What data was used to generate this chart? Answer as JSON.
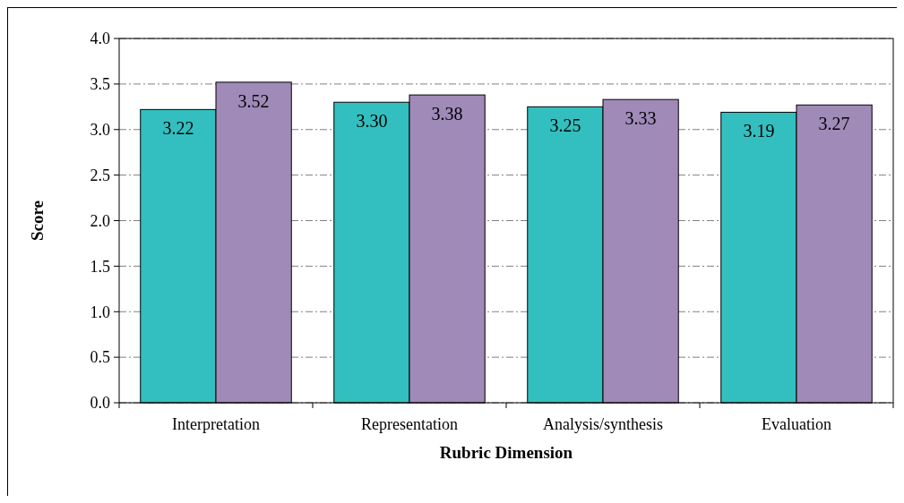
{
  "chart_data": {
    "type": "bar",
    "xlabel": "Rubric Dimension",
    "ylabel": "Score",
    "categories": [
      "Interpretation",
      "Representation",
      "Analysis/synthesis",
      "Evaluation"
    ],
    "series": [
      {
        "color": "#33bfbf",
        "values": [
          3.22,
          3.3,
          3.25,
          3.19
        ],
        "value_labels": [
          "3.22",
          "3.30",
          "3.25",
          "3.19"
        ]
      },
      {
        "color": "#a08ab8",
        "values": [
          3.52,
          3.38,
          3.33,
          3.27
        ],
        "value_labels": [
          "3.52",
          "3.38",
          "3.33",
          "3.27"
        ]
      }
    ],
    "ylim": [
      0,
      4
    ],
    "yticks": [
      {
        "value": 0,
        "label": "0.0"
      },
      {
        "value": 0.5,
        "label": "0.5"
      },
      {
        "value": 1,
        "label": "1.0"
      },
      {
        "value": 1.5,
        "label": "1.5"
      },
      {
        "value": 2,
        "label": "2.0"
      },
      {
        "value": 2.5,
        "label": "2.5"
      },
      {
        "value": 3,
        "label": "3.0"
      },
      {
        "value": 3.5,
        "label": "3.5"
      },
      {
        "value": 4,
        "label": "4.0"
      }
    ],
    "grid": "y"
  }
}
